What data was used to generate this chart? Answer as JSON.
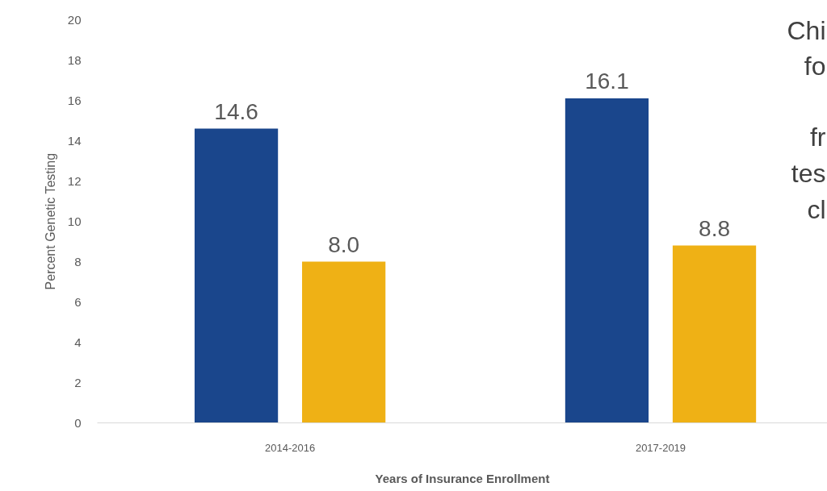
{
  "chart_data": {
    "type": "bar",
    "xlabel": "Years of Insurance Enrollment",
    "ylabel": "Percent Genetic Testing",
    "categories": [
      "2014-2016",
      "2017-2019"
    ],
    "series": [
      {
        "color": "#1a468c",
        "values": [
          14.6,
          16.1
        ]
      },
      {
        "color": "#efb115",
        "values": [
          8.0,
          8.8
        ]
      }
    ],
    "ylim": [
      0,
      20
    ],
    "yticks": [
      0,
      2,
      4,
      6,
      8,
      10,
      12,
      14,
      16,
      18,
      20
    ],
    "grid": false,
    "value_labels": [
      [
        "14.6",
        "16.1"
      ],
      [
        "8.0",
        "8.8"
      ]
    ],
    "annotations": [
      "Chi",
      "fo",
      "fr",
      "tes",
      "cl"
    ]
  }
}
